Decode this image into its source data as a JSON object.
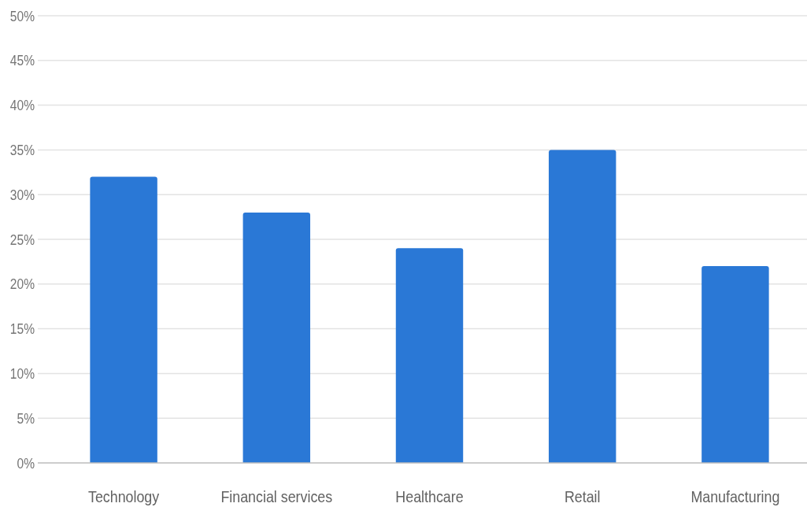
{
  "chart_data": {
    "type": "bar",
    "categories": [
      "Technology",
      "Financial services",
      "Healthcare",
      "Retail",
      "Manufacturing"
    ],
    "values": [
      32,
      28,
      24,
      35,
      22
    ],
    "color": "#2a78d6",
    "ylim": [
      0,
      50
    ],
    "yticks": [
      {
        "value": 0,
        "label": "0%"
      },
      {
        "value": 5,
        "label": "5%"
      },
      {
        "value": 10,
        "label": "10%"
      },
      {
        "value": 15,
        "label": "15%"
      },
      {
        "value": 20,
        "label": "20%"
      },
      {
        "value": 25,
        "label": "25%"
      },
      {
        "value": 30,
        "label": "30%"
      },
      {
        "value": 35,
        "label": "35%"
      },
      {
        "value": 40,
        "label": "40%"
      },
      {
        "value": 45,
        "label": "45%"
      },
      {
        "value": 50,
        "label": "50%"
      }
    ],
    "grid": "y"
  }
}
